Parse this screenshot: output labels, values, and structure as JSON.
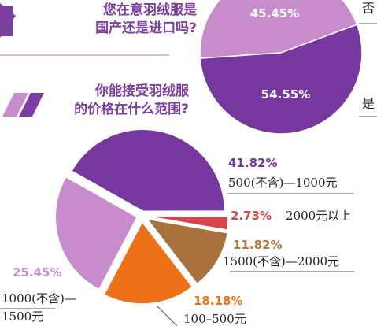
{
  "question_origin": {
    "line1": "您在意羽绒服是",
    "line2": "国产还是进口吗?"
  },
  "question_price": {
    "line1": "你能接受羽绒服",
    "line2": "的价格在什么范围?"
  },
  "colors": {
    "purple_dark": "#76379e",
    "purple_light": "#c88ccd",
    "orange": "#ee7118",
    "brown": "#a9723c",
    "red": "#d9434a",
    "pink_pct": "#c98fd3",
    "orange_pct": "#ee7118",
    "brown_pct": "#b07a38",
    "red_pct": "#d9434a"
  },
  "chart_data": [
    {
      "type": "pie",
      "slices": [
        {
          "label": "否",
          "value": 45.45,
          "display": "45.45%",
          "color": "#c88ccd"
        },
        {
          "label": "是",
          "value": 54.55,
          "display": "54.55%",
          "color": "#76379e"
        }
      ]
    },
    {
      "type": "pie",
      "slices": [
        {
          "label": "500(不含)—1000元",
          "value": 41.82,
          "display": "41.82%",
          "color": "#76379e"
        },
        {
          "label": "2000元以上",
          "value": 2.73,
          "display": "2.73%",
          "color": "#d9434a"
        },
        {
          "label": "1500(不含)—2000元",
          "value": 11.82,
          "display": "11.82%",
          "color": "#a9723c"
        },
        {
          "label": "100–500元",
          "value": 18.18,
          "display": "18.18%",
          "color": "#ee7118"
        },
        {
          "label_line1": "1000(不含)—",
          "label_line2": "1500元",
          "value": 25.45,
          "display": "25.45%",
          "color": "#c88ccd"
        }
      ]
    }
  ]
}
